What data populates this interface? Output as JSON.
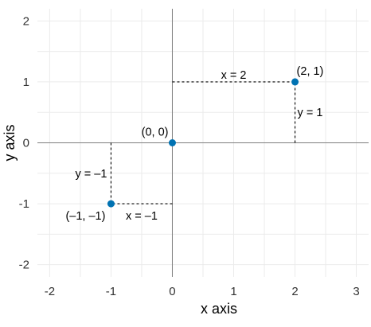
{
  "chart_data": {
    "type": "scatter",
    "xlabel": "x axis",
    "ylabel": "y axis",
    "xlim": [
      -2.2,
      3.2
    ],
    "ylim": [
      -2.2,
      2.2
    ],
    "x_ticks": [
      -2,
      -1,
      0,
      1,
      2,
      3
    ],
    "y_ticks": [
      -2,
      -1,
      0,
      1,
      2
    ],
    "grid": true,
    "point_color": "#0072B2",
    "points": [
      {
        "x": 2,
        "y": 1,
        "label": "(2, 1)"
      },
      {
        "x": 0,
        "y": 0,
        "label": "(0, 0)"
      },
      {
        "x": -1,
        "y": -1,
        "label": "(–1, –1)"
      }
    ],
    "annotations": [
      "x = 2",
      "y = 1",
      "y = –1",
      "x = –1"
    ]
  }
}
